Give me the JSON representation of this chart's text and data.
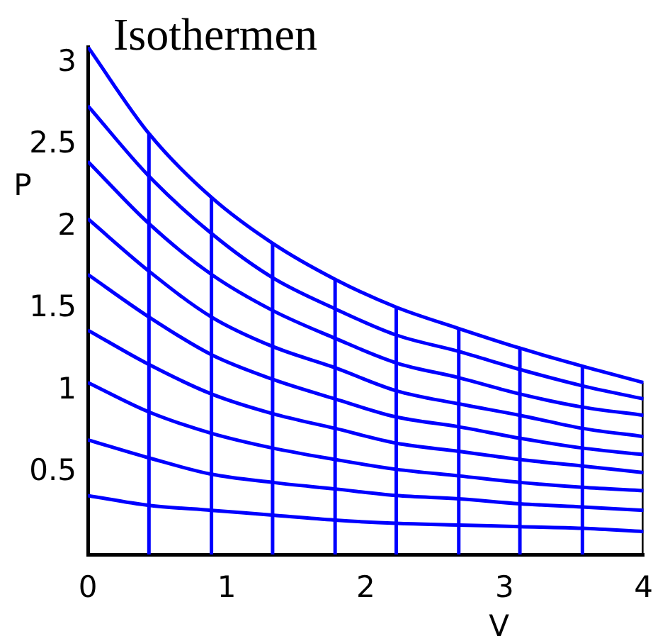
{
  "chart_data": {
    "type": "line",
    "title": "Isothermen",
    "xlabel": "V",
    "ylabel": "P",
    "x": [
      0,
      0.44,
      0.89,
      1.33,
      1.78,
      2.22,
      2.67,
      3.11,
      3.56,
      4
    ],
    "xlim": [
      0,
      4
    ],
    "xticks": [
      0,
      1,
      2,
      3,
      4
    ],
    "ylim": [
      0,
      3.1
    ],
    "yticks": [
      0.5,
      1,
      1.5,
      2,
      2.5,
      3
    ],
    "grid": false,
    "legend": false,
    "marker": "none",
    "line_style": "solid",
    "series": [
      {
        "color": "#0000ff",
        "values": [
          3.1,
          2.57,
          2.18,
          1.9,
          1.68,
          1.51,
          1.38,
          1.26,
          1.15,
          1.05
        ]
      },
      {
        "color": "#0000ff",
        "values": [
          2.74,
          2.31,
          1.96,
          1.69,
          1.5,
          1.34,
          1.24,
          1.13,
          1.03,
          0.95
        ]
      },
      {
        "color": "#0000ff",
        "values": [
          2.4,
          2.02,
          1.71,
          1.49,
          1.32,
          1.17,
          1.08,
          0.98,
          0.9,
          0.85
        ]
      },
      {
        "color": "#0000ff",
        "values": [
          2.05,
          1.73,
          1.45,
          1.27,
          1.14,
          1.0,
          0.92,
          0.85,
          0.77,
          0.72
        ]
      },
      {
        "color": "#0000ff",
        "values": [
          1.71,
          1.45,
          1.22,
          1.07,
          0.95,
          0.84,
          0.78,
          0.71,
          0.65,
          0.61
        ]
      },
      {
        "color": "#0000ff",
        "values": [
          1.37,
          1.16,
          0.98,
          0.86,
          0.77,
          0.68,
          0.63,
          0.58,
          0.54,
          0.5
        ]
      },
      {
        "color": "#0000ff",
        "values": [
          1.05,
          0.87,
          0.74,
          0.65,
          0.58,
          0.52,
          0.48,
          0.44,
          0.41,
          0.39
        ]
      },
      {
        "color": "#0000ff",
        "values": [
          0.7,
          0.59,
          0.49,
          0.44,
          0.4,
          0.36,
          0.34,
          0.31,
          0.29,
          0.27
        ]
      },
      {
        "color": "#0000ff",
        "values": [
          0.36,
          0.3,
          0.27,
          0.24,
          0.21,
          0.19,
          0.18,
          0.17,
          0.16,
          0.14
        ]
      },
      {
        "color": "#0000ff",
        "x": [
          0.44,
          0.44
        ],
        "values": [
          0,
          2.57
        ]
      },
      {
        "color": "#0000ff",
        "x": [
          0.89,
          0.89
        ],
        "values": [
          0,
          2.18
        ]
      },
      {
        "color": "#0000ff",
        "x": [
          1.33,
          1.33
        ],
        "values": [
          0,
          1.9
        ]
      },
      {
        "color": "#0000ff",
        "x": [
          1.78,
          1.78
        ],
        "values": [
          0,
          1.68
        ]
      },
      {
        "color": "#0000ff",
        "x": [
          2.22,
          2.22
        ],
        "values": [
          0,
          1.51
        ]
      },
      {
        "color": "#0000ff",
        "x": [
          2.67,
          2.67
        ],
        "values": [
          0,
          1.38
        ]
      },
      {
        "color": "#0000ff",
        "x": [
          3.11,
          3.11
        ],
        "values": [
          0,
          1.26
        ]
      },
      {
        "color": "#0000ff",
        "x": [
          3.56,
          3.56
        ],
        "values": [
          0,
          1.15
        ]
      },
      {
        "color": "#000000",
        "x": [
          4,
          4
        ],
        "values": [
          0,
          1.05
        ]
      }
    ]
  }
}
